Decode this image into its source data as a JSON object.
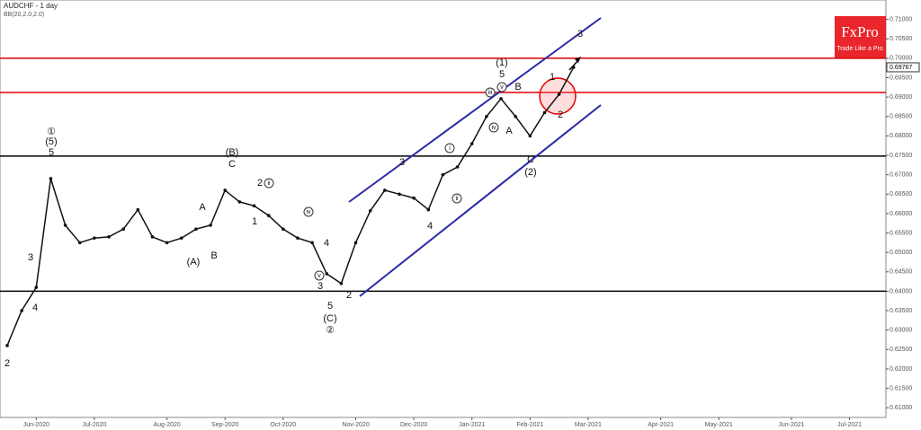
{
  "chart_data": {
    "type": "line",
    "title": "AUDCHF  - 1 day",
    "subtitle": "BB(20,2.0,2.0)",
    "logo": "FxPro",
    "logo_tagline": "Trade Like a Pro",
    "last_price": {
      "value": 0.69767,
      "label": "0.69767"
    },
    "categories": [
      null,
      null,
      "Jun-2020",
      null,
      null,
      null,
      "Jul-2020",
      null,
      null,
      null,
      null,
      "Aug-2020",
      null,
      null,
      null,
      "Sep-2020",
      null,
      null,
      null,
      "Oct-2020",
      null,
      null,
      null,
      null,
      "Nov-2020",
      null,
      null,
      null,
      "Dec-2020",
      null,
      null,
      null,
      "Jan-2021",
      null,
      null,
      null,
      "Feb-2021",
      null,
      null,
      null,
      "Mar-2021",
      null,
      null,
      null,
      null,
      "Apr-2021",
      null,
      null,
      null,
      "May-2021",
      null,
      null,
      null,
      null,
      "Jun-2021",
      null,
      null,
      null,
      "Jul-2021",
      null,
      null
    ],
    "series": [
      {
        "name": "AUDCHF",
        "color": "#111111",
        "values": [
          0.626,
          0.635,
          0.641,
          0.669,
          0.657,
          0.6525,
          0.6537,
          0.654,
          0.656,
          0.661,
          0.654,
          0.6525,
          0.6537,
          0.656,
          0.657,
          0.666,
          0.663,
          0.662,
          0.6595,
          0.656,
          0.6537,
          0.6525,
          0.6445,
          0.642,
          0.6525,
          0.6607,
          0.666,
          0.665,
          0.664,
          0.661,
          0.67,
          0.672,
          0.678,
          0.685,
          0.6896,
          0.685,
          0.68,
          0.686,
          0.6907,
          0.69767,
          null,
          null,
          null,
          null,
          null,
          null,
          null,
          null,
          null,
          null,
          null,
          null,
          null,
          null,
          null,
          null,
          null,
          null,
          null,
          null,
          null
        ]
      }
    ],
    "levels": [
      {
        "value": 0.7,
        "color": "#e00000"
      },
      {
        "value": 0.6912,
        "color": "#e00000"
      },
      {
        "value": 0.6748,
        "color": "#000000"
      },
      {
        "value": 0.64,
        "color": "#000000"
      }
    ],
    "ylim": [
      0.6075,
      0.715
    ],
    "yticks": [
      {
        "value": 0.61,
        "label": "0.61000"
      },
      {
        "value": 0.615,
        "label": "0.61500"
      },
      {
        "value": 0.62,
        "label": "0.62000"
      },
      {
        "value": 0.625,
        "label": "0.62500"
      },
      {
        "value": 0.63,
        "label": "0.63000"
      },
      {
        "value": 0.635,
        "label": "0.63500"
      },
      {
        "value": 0.64,
        "label": "0.64000"
      },
      {
        "value": 0.645,
        "label": "0.64500"
      },
      {
        "value": 0.65,
        "label": "0.65000"
      },
      {
        "value": 0.655,
        "label": "0.65500"
      },
      {
        "value": 0.66,
        "label": "0.66000"
      },
      {
        "value": 0.665,
        "label": "0.66500"
      },
      {
        "value": 0.67,
        "label": "0.67000"
      },
      {
        "value": 0.675,
        "label": "0.67500"
      },
      {
        "value": 0.68,
        "label": "0.68000"
      },
      {
        "value": 0.685,
        "label": "0.68500"
      },
      {
        "value": 0.69,
        "label": "0.69000"
      },
      {
        "value": 0.695,
        "label": "0.69500"
      },
      {
        "value": 0.7,
        "label": "0.70000"
      },
      {
        "value": 0.705,
        "label": "0.70500"
      },
      {
        "value": 0.71,
        "label": "0.71000"
      }
    ],
    "annotations": [
      "①",
      "(5)",
      "5",
      "3",
      "4",
      "2",
      "A",
      "B",
      "(A)",
      "(B)",
      "C",
      "2",
      "ii",
      "1",
      "iv",
      "4",
      "v",
      "3",
      "2",
      "5",
      "(C)",
      "②",
      "3",
      "i",
      "ii",
      "4",
      "(1)",
      "5",
      "iii",
      "v",
      "iv",
      "B",
      "A",
      "C",
      "(2)",
      "1",
      "2",
      "3"
    ]
  }
}
